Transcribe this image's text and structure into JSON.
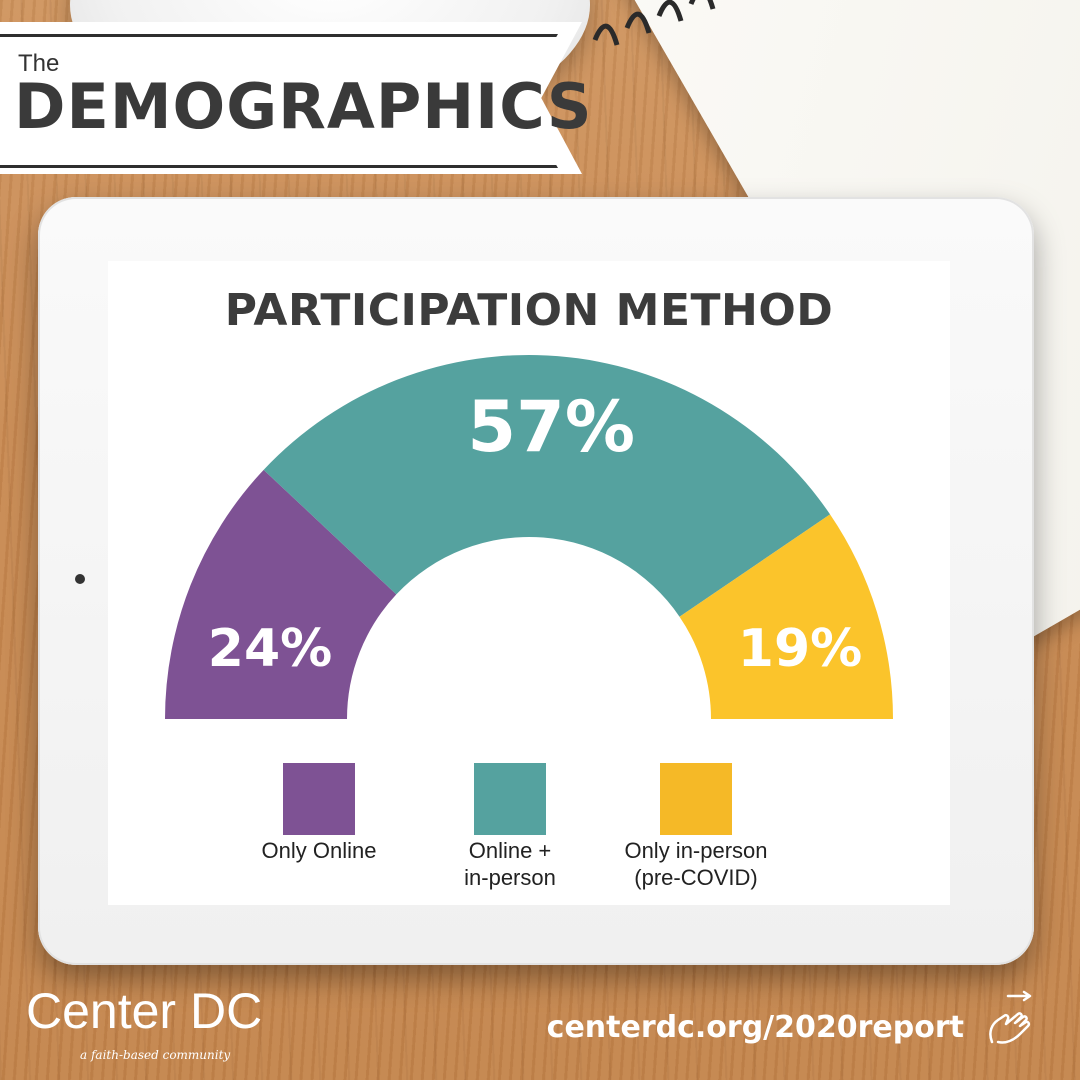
{
  "header": {
    "the_label": "The",
    "title": "DEMOGRAPHICS"
  },
  "chart_data": {
    "type": "pie",
    "subtype": "semi-donut",
    "title": "PARTICIPATION METHOD",
    "slices": [
      {
        "label": "Only Online",
        "value": 24,
        "display": "24%",
        "color": "#7e5294"
      },
      {
        "label": "Online +\nin-person",
        "value": 57,
        "display": "57%",
        "color": "#55a29f"
      },
      {
        "label": "Only in-person\n(pre-COVID)",
        "value": 19,
        "display": "19%",
        "color": "#fbc42b"
      }
    ],
    "legend": "bottom"
  },
  "footer": {
    "brand": "Center DC",
    "tagline": "a faith-based community",
    "url": "centerdc.org/2020report"
  },
  "icons": {
    "hand": "pointing-hand-icon"
  }
}
